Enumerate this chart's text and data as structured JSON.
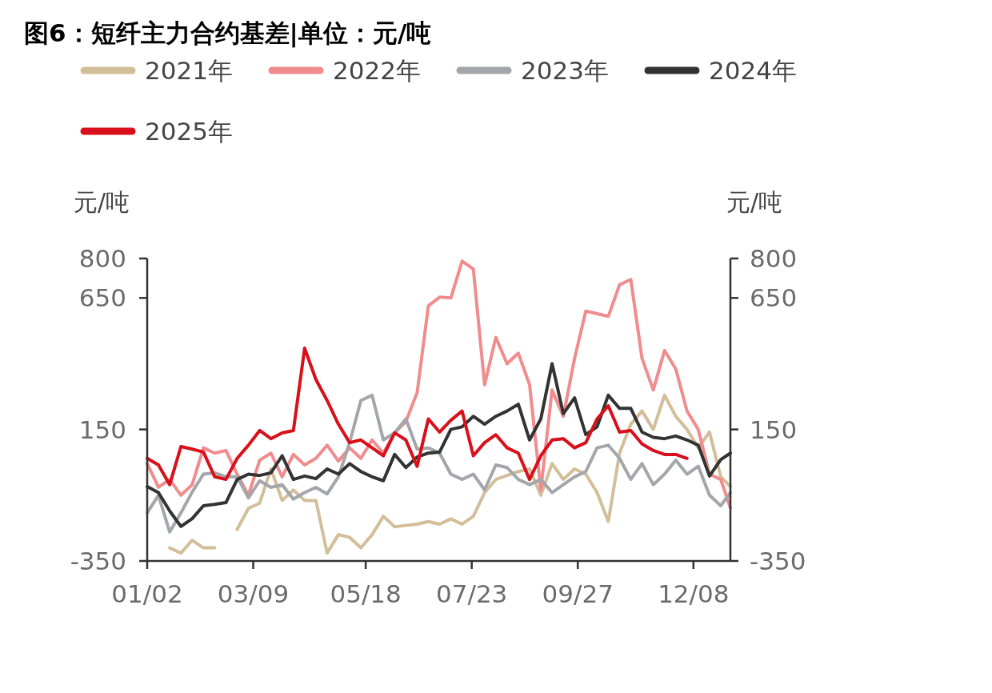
{
  "chart_data": {
    "type": "line",
    "title": "图6：短纤主力合约基差|单位：元/吨",
    "ylabel": "元/吨",
    "y2label": "元/吨",
    "x": [
      "--01-02",
      "--01-09",
      "--01-16",
      "--01-23",
      "--01-30",
      "--02-06",
      "--02-13",
      "--02-20",
      "--02-27",
      "--03-06",
      "--03-13",
      "--03-20",
      "--03-27",
      "--04-03",
      "--04-10",
      "--04-17",
      "--04-24",
      "--05-01",
      "--05-08",
      "--05-15",
      "--05-22",
      "--05-29",
      "--06-05",
      "--06-12",
      "--06-19",
      "--06-26",
      "--07-03",
      "--07-10",
      "--07-17",
      "--07-24",
      "--07-31",
      "--08-07",
      "--08-14",
      "--08-21",
      "--08-28",
      "--09-04",
      "--09-11",
      "--09-18",
      "--09-25",
      "--10-02",
      "--10-09",
      "--10-16",
      "--10-23",
      "--10-30",
      "--11-06",
      "--11-13",
      "--11-20",
      "--11-27",
      "--12-04",
      "--12-11",
      "--12-18",
      "--12-25",
      "--12-31"
    ],
    "xlim": [
      "--01-02",
      "--12-31"
    ],
    "xticks": [
      {
        "value": "--01-02",
        "label": "01/02"
      },
      {
        "value": "--03-09",
        "label": "03/09"
      },
      {
        "value": "--05-18",
        "label": "05/18"
      },
      {
        "value": "--07-23",
        "label": "07/23"
      },
      {
        "value": "--09-27",
        "label": "09/27"
      },
      {
        "value": "--12-08",
        "label": "12/08"
      }
    ],
    "ylim": [
      -350,
      800
    ],
    "yticks": [
      -350,
      150,
      650,
      800
    ],
    "y2lim": [
      -350,
      800
    ],
    "y2ticks": [
      -350,
      150,
      650,
      800
    ],
    "legend": "top",
    "grid": false,
    "marker": "none",
    "line_style": "solid",
    "series": [
      {
        "name": "2021年",
        "color": "#d2bf9a",
        "values": [
          null,
          null,
          -300,
          -320,
          -271,
          -300,
          -300,
          null,
          -230,
          -150,
          -130,
          0,
          -120,
          -80,
          -120,
          -120,
          -320,
          -250,
          -260,
          -300,
          -250,
          -180,
          -220,
          -215,
          -210,
          -200,
          -210,
          -190,
          -210,
          -180,
          -90,
          -40,
          -25,
          -10,
          0,
          -100,
          20,
          -40,
          0,
          -20,
          -90,
          -200,
          60,
          170,
          220,
          150,
          280,
          200,
          150,
          80,
          140,
          -30,
          -67
        ]
      },
      {
        "name": "2022年",
        "color": "#f08c8e",
        "values": [
          20,
          -70,
          -40,
          -100,
          -60,
          80,
          60,
          70,
          -20,
          -100,
          33,
          60,
          -30,
          55,
          15,
          40,
          90,
          30,
          80,
          40,
          110,
          60,
          137,
          180,
          290,
          620,
          653,
          650,
          790,
          760,
          320,
          500,
          400,
          440,
          320,
          -80,
          300,
          200,
          420,
          600,
          590,
          580,
          700,
          720,
          420,
          300,
          450,
          380,
          220,
          150,
          -20,
          -40,
          -149
        ]
      },
      {
        "name": "2023年",
        "color": "#a3a6aa",
        "values": [
          -167,
          -100,
          -240,
          -167,
          -88,
          -20,
          -15,
          -30,
          -30,
          -110,
          -45,
          -70,
          -60,
          -115,
          -90,
          -70,
          -95,
          -30,
          100,
          260,
          280,
          110,
          137,
          190,
          75,
          80,
          60,
          -20,
          -40,
          -20,
          -80,
          15,
          5,
          -40,
          -60,
          -40,
          -90,
          -60,
          -30,
          -10,
          80,
          90,
          40,
          -40,
          20,
          -60,
          -20,
          33,
          -20,
          10,
          -100,
          -140,
          -90
        ]
      },
      {
        "name": "2024年",
        "color": "#333333",
        "values": [
          -67,
          -90,
          -160,
          -219,
          -189,
          -140,
          -135,
          -128,
          -40,
          -20,
          -25,
          -15,
          50,
          -40,
          -27,
          -37,
          0,
          -20,
          20,
          -10,
          -30,
          -45,
          55,
          5,
          45,
          60,
          64,
          150,
          160,
          200,
          170,
          200,
          220,
          246,
          110,
          190,
          400,
          210,
          270,
          130,
          160,
          280,
          230,
          230,
          140,
          120,
          115,
          125,
          110,
          90,
          -27,
          35,
          60
        ]
      },
      {
        "name": "2025年",
        "color": "#d9101b",
        "values": [
          40,
          15,
          -60,
          85,
          75,
          64,
          -30,
          -40,
          40,
          90,
          146,
          115,
          137,
          146,
          459,
          340,
          260,
          170,
          100,
          110,
          80,
          50,
          137,
          110,
          10,
          190,
          140,
          185,
          220,
          50,
          100,
          130,
          80,
          60,
          -40,
          50,
          110,
          115,
          80,
          100,
          190,
          240,
          140,
          146,
          95,
          70,
          55,
          55,
          40,
          null,
          null,
          null,
          null
        ]
      }
    ]
  }
}
